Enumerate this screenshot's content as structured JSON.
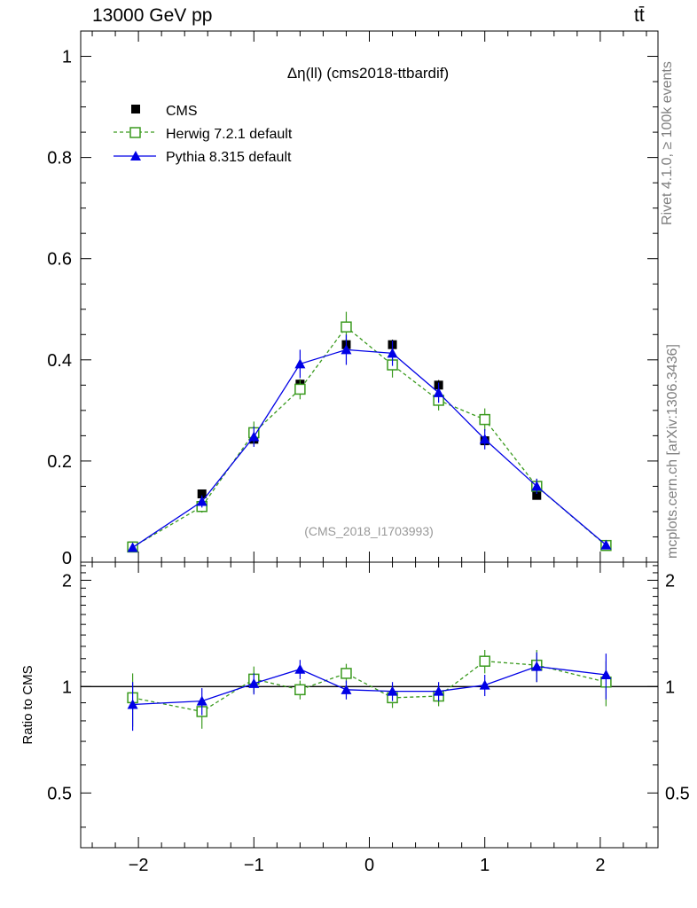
{
  "header": {
    "energy_label": "13000 GeV pp",
    "process_label": "tt̄"
  },
  "side_labels": {
    "rivet": "Rivet 4.1.0, ≥ 100k events",
    "mcplots": "mcplots.cern.ch [arXiv:1306.3436]"
  },
  "chart_data": {
    "type": "line",
    "title": "Δη(ll) (cms2018-ttbardif)",
    "watermark": "(CMS_2018_I1703993)",
    "xlabel": "",
    "ylabel": "",
    "xlim": [
      -2.5,
      2.5
    ],
    "ylim": [
      0,
      1.05
    ],
    "x_ticks": [
      -2,
      -1,
      0,
      1,
      2
    ],
    "x_tick_labels": [
      "−2",
      "−1",
      "0",
      "1",
      "2"
    ],
    "y_ticks": [
      0,
      0.2,
      0.4,
      0.6,
      0.8,
      1
    ],
    "y_tick_labels": [
      "0",
      "0.2",
      "0.4",
      "0.6",
      "0.8",
      "1"
    ],
    "x": [
      -2.05,
      -1.45,
      -1.0,
      -0.6,
      -0.2,
      0.2,
      0.6,
      1.0,
      1.45,
      2.05
    ],
    "series": [
      {
        "name": "CMS",
        "color": "#000000",
        "marker": "filled-square",
        "values": [
          0.032,
          0.135,
          0.243,
          0.352,
          0.43,
          0.43,
          0.35,
          0.24,
          0.132,
          0.033
        ],
        "errors": [
          0.004,
          0.007,
          0.008,
          0.01,
          0.01,
          0.01,
          0.01,
          0.008,
          0.007,
          0.004
        ]
      },
      {
        "name": "Herwig 7.2.1 default",
        "color": "#3a9a1e",
        "marker": "open-square",
        "dashed": true,
        "values": [
          0.03,
          0.11,
          0.256,
          0.342,
          0.465,
          0.39,
          0.32,
          0.282,
          0.15,
          0.033
        ],
        "errors": [
          0.005,
          0.012,
          0.022,
          0.02,
          0.03,
          0.025,
          0.02,
          0.022,
          0.015,
          0.005
        ]
      },
      {
        "name": "Pythia 8.315 default",
        "color": "#0000e6",
        "marker": "filled-triangle",
        "values": [
          0.029,
          0.12,
          0.248,
          0.392,
          0.42,
          0.413,
          0.335,
          0.243,
          0.15,
          0.034
        ],
        "errors": [
          0.004,
          0.012,
          0.02,
          0.028,
          0.03,
          0.025,
          0.02,
          0.02,
          0.015,
          0.005
        ]
      }
    ],
    "ratio": {
      "ylabel": "Ratio to CMS",
      "ylim": [
        0.35,
        2.25
      ],
      "y_ticks": [
        0.5,
        1,
        2
      ],
      "y_tick_labels": [
        "0.5",
        "1",
        "2"
      ],
      "series": [
        {
          "name": "Herwig 7.2.1 default",
          "values": [
            0.93,
            0.85,
            1.05,
            0.98,
            1.09,
            0.93,
            0.94,
            1.18,
            1.15,
            1.03
          ],
          "errors": [
            0.16,
            0.09,
            0.09,
            0.06,
            0.07,
            0.06,
            0.06,
            0.09,
            0.12,
            0.15
          ]
        },
        {
          "name": "Pythia 8.315 default",
          "values": [
            0.89,
            0.91,
            1.02,
            1.12,
            0.98,
            0.97,
            0.97,
            1.01,
            1.14,
            1.08
          ],
          "errors": [
            0.14,
            0.08,
            0.07,
            0.07,
            0.06,
            0.06,
            0.06,
            0.07,
            0.11,
            0.16
          ]
        }
      ]
    }
  }
}
